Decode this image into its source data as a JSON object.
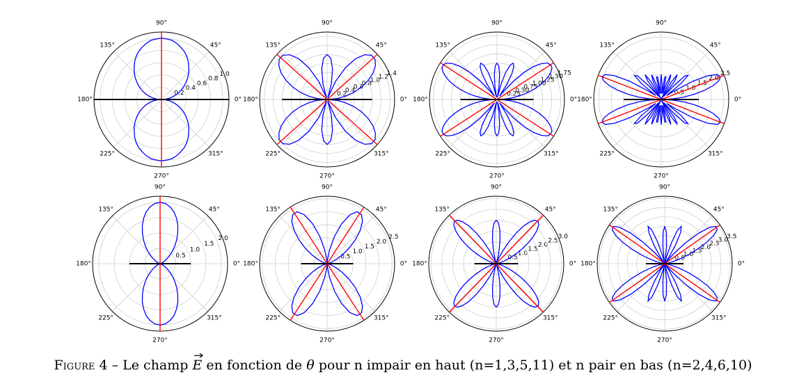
{
  "chart_data": [
    {
      "type": "polar",
      "x": [
        0,
        5,
        10,
        15,
        20,
        25,
        30,
        35,
        40,
        45,
        50,
        55,
        60,
        65,
        70,
        75,
        80,
        85,
        90
      ],
      "values": [
        0,
        0.07,
        0.14,
        0.21,
        0.28,
        0.35,
        0.42,
        0.49,
        0.56,
        0.63,
        0.69,
        0.76,
        0.82,
        0.87,
        0.91,
        0.95,
        0.98,
        0.99,
        1
      ],
      "color": "#0000ff",
      "ylim": [
        0,
        1.1
      ],
      "yticks": [
        0.2,
        0.4,
        0.6,
        0.8,
        {
          "value": 1,
          "label": "1.0"
        }
      ],
      "xticks": [
        {
          "value": 0,
          "label": "0°"
        },
        {
          "value": 45,
          "label": "45°"
        },
        {
          "value": 90,
          "label": "90°"
        },
        {
          "value": 135,
          "label": "135°"
        },
        {
          "value": 180,
          "label": "180°"
        },
        {
          "value": 225,
          "label": "225°"
        },
        {
          "value": 270,
          "label": "270°"
        },
        {
          "value": 315,
          "label": "315°"
        }
      ],
      "peak_angles": [
        90
      ],
      "peak_color": "#ff0000",
      "axis_line": 1.1,
      "axis_line_color": "#000000",
      "grid": true
    },
    {
      "type": "polar",
      "x": [
        0,
        5,
        10,
        15,
        20,
        25,
        30,
        35,
        40,
        45,
        50,
        55,
        60,
        65,
        70,
        75,
        80,
        85,
        90
      ],
      "values": [
        0,
        0.21,
        0.41,
        0.62,
        0.82,
        1.01,
        1.18,
        1.31,
        1.39,
        1.39,
        1.3,
        1.11,
        0.82,
        0.45,
        0.04,
        0.36,
        0.69,
        0.92,
        1
      ],
      "color": "#0000ff",
      "ylim": [
        0,
        1.5
      ],
      "yticks": [
        0.2,
        0.4,
        0.6,
        0.8,
        {
          "value": 1,
          "label": "1.0"
        },
        1.2,
        1.4
      ],
      "xticks": [
        {
          "value": 0,
          "label": "0°"
        },
        {
          "value": 45,
          "label": "45°"
        },
        {
          "value": 90,
          "label": "90°"
        },
        {
          "value": 135,
          "label": "135°"
        },
        {
          "value": 180,
          "label": "180°"
        },
        {
          "value": 225,
          "label": "225°"
        },
        {
          "value": 270,
          "label": "270°"
        },
        {
          "value": 315,
          "label": "315°"
        }
      ],
      "peak_angles": [
        42
      ],
      "peak_color": "#ff0000",
      "axis_line": 1,
      "axis_line_color": "#000000",
      "grid": true
    },
    {
      "type": "polar",
      "x": [
        0,
        3,
        6,
        9,
        12,
        15,
        18,
        21,
        24,
        27,
        30,
        33,
        36,
        39,
        42,
        45,
        48,
        51,
        54,
        57,
        60,
        63,
        66,
        69,
        72,
        75,
        78,
        81,
        84,
        87,
        90
      ],
      "values": [
        0,
        0.21,
        0.41,
        0.62,
        0.82,
        1.02,
        1.21,
        1.39,
        1.54,
        1.66,
        1.74,
        1.75,
        1.7,
        1.56,
        1.35,
        1.05,
        0.69,
        0.29,
        0.12,
        0.5,
        0.82,
        1.02,
        1.09,
        1.01,
        0.79,
        0.46,
        0.06,
        0.34,
        0.69,
        0.92,
        1
      ],
      "color": "#0000ff",
      "ylim": [
        0,
        1.85
      ],
      "yticks": [
        0.25,
        {
          "value": 0.5,
          "label": "0.50"
        },
        0.75,
        {
          "value": 1,
          "label": "1.00"
        },
        1.25,
        {
          "value": 1.5,
          "label": "1.50"
        },
        1.75
      ],
      "xticks": [
        {
          "value": 0,
          "label": "0°"
        },
        {
          "value": 45,
          "label": "45°"
        },
        {
          "value": 90,
          "label": "90°"
        },
        {
          "value": 135,
          "label": "135°"
        },
        {
          "value": 180,
          "label": "180°"
        },
        {
          "value": 225,
          "label": "225°"
        },
        {
          "value": 270,
          "label": "270°"
        },
        {
          "value": 315,
          "label": "315°"
        }
      ],
      "peak_angles": [
        33
      ],
      "peak_color": "#ff0000",
      "axis_line": 1,
      "axis_line_color": "#000000",
      "grid": true
    },
    {
      "type": "polar",
      "x": [
        0,
        3,
        6,
        9,
        12,
        15,
        18,
        21,
        24,
        27,
        30,
        33,
        36,
        39,
        42,
        45,
        48,
        51,
        54,
        57,
        60,
        63,
        66,
        69,
        72,
        75,
        78,
        81,
        84,
        87,
        90
      ],
      "values": [
        0,
        0.45,
        0.9,
        1.35,
        1.77,
        2.15,
        2.42,
        2.54,
        2.45,
        2.1,
        1.47,
        0.64,
        0.27,
        1.03,
        1.44,
        1.33,
        0.72,
        0.16,
        0.92,
        1.19,
        0.82,
        0.01,
        0.8,
        1.07,
        0.62,
        0.25,
        0.92,
        0.92,
        0.23,
        0.62,
        1
      ],
      "color": "#0000ff",
      "ylim": [
        0,
        2.7
      ],
      "yticks": [
        0.5,
        {
          "value": 1,
          "label": "1.0"
        },
        1.5,
        {
          "value": 2,
          "label": "2.0"
        },
        2.5
      ],
      "xticks": [
        {
          "value": 0,
          "label": "0°"
        },
        {
          "value": 45,
          "label": "45°"
        },
        {
          "value": 90,
          "label": "90°"
        },
        {
          "value": 135,
          "label": "135°"
        },
        {
          "value": 180,
          "label": "180°"
        },
        {
          "value": 225,
          "label": "225°"
        },
        {
          "value": 270,
          "label": "270°"
        },
        {
          "value": 315,
          "label": "315°"
        }
      ],
      "peak_angles": [
        21
      ],
      "peak_color": "#ff0000",
      "axis_line": 1.5,
      "axis_line_color": "#000000",
      "grid": true
    },
    {
      "type": "polar",
      "x": [
        0,
        5,
        10,
        15,
        20,
        25,
        30,
        35,
        40,
        45,
        50,
        55,
        60,
        65,
        70,
        75,
        80,
        85,
        90
      ],
      "values": [
        0,
        0,
        0.01,
        0.02,
        0.05,
        0.1,
        0.17,
        0.27,
        0.4,
        0.56,
        0.74,
        0.94,
        1.15,
        1.37,
        1.57,
        1.75,
        1.88,
        1.97,
        2
      ],
      "color": "#0000ff",
      "ylim": [
        0,
        2.2
      ],
      "yticks": [
        0.5,
        {
          "value": 1,
          "label": "1.0"
        },
        1.5,
        {
          "value": 2,
          "label": "2.0"
        }
      ],
      "xticks": [
        {
          "value": 0,
          "label": "0°"
        },
        {
          "value": 45,
          "label": "45°"
        },
        {
          "value": 90,
          "label": "90°"
        },
        {
          "value": 135,
          "label": "135°"
        },
        {
          "value": 180,
          "label": "180°"
        },
        {
          "value": 225,
          "label": "225°"
        },
        {
          "value": 270,
          "label": "270°"
        },
        {
          "value": 315,
          "label": "315°"
        }
      ],
      "peak_angles": [
        90
      ],
      "peak_color": "#ff0000",
      "axis_line": 1,
      "axis_line_color": "#000000",
      "grid": true
    },
    {
      "type": "polar",
      "x": [
        0,
        5,
        10,
        15,
        20,
        25,
        30,
        35,
        40,
        45,
        50,
        55,
        60,
        65,
        70,
        75,
        80,
        85,
        90
      ],
      "values": [
        0,
        0,
        0.03,
        0.09,
        0.21,
        0.4,
        0.67,
        1.01,
        1.4,
        1.79,
        2.12,
        2.31,
        2.31,
        2.08,
        1.64,
        1.09,
        0.54,
        0.15,
        0
      ],
      "color": "#0000ff",
      "ylim": [
        0,
        2.6
      ],
      "yticks": [
        0.5,
        {
          "value": 1,
          "label": "1.0"
        },
        1.5,
        {
          "value": 2,
          "label": "2.0"
        },
        2.5
      ],
      "xticks": [
        {
          "value": 0,
          "label": "0°"
        },
        {
          "value": 45,
          "label": "45°"
        },
        {
          "value": 90,
          "label": "90°"
        },
        {
          "value": 135,
          "label": "135°"
        },
        {
          "value": 180,
          "label": "180°"
        },
        {
          "value": 225,
          "label": "225°"
        },
        {
          "value": 270,
          "label": "270°"
        },
        {
          "value": 315,
          "label": "315°"
        }
      ],
      "peak_angles": [
        57
      ],
      "peak_color": "#ff0000",
      "axis_line": 1,
      "axis_line_color": "#000000",
      "grid": true
    },
    {
      "type": "polar",
      "x": [
        0,
        3,
        6,
        9,
        12,
        15,
        18,
        21,
        24,
        27,
        30,
        33,
        36,
        39,
        42,
        45,
        48,
        51,
        54,
        57,
        60,
        63,
        66,
        69,
        72,
        75,
        78,
        81,
        84,
        87,
        90
      ],
      "values": [
        0,
        0,
        0.01,
        0.04,
        0.1,
        0.2,
        0.34,
        0.53,
        0.77,
        1.06,
        1.39,
        1.74,
        2.09,
        2.39,
        2.62,
        2.73,
        2.69,
        2.49,
        2.15,
        1.68,
        1.15,
        0.65,
        0.25,
        0.03,
        0.03,
        0.24,
        0.63,
        1.11,
        1.56,
        1.88,
        2
      ],
      "color": "#0000ff",
      "ylim": [
        0,
        3.1
      ],
      "yticks": [
        0.5,
        {
          "value": 1,
          "label": "1.0"
        },
        1.5,
        {
          "value": 2,
          "label": "2.0"
        },
        2.5,
        {
          "value": 3,
          "label": "3.0"
        }
      ],
      "xticks": [
        {
          "value": 0,
          "label": "0°"
        },
        {
          "value": 45,
          "label": "45°"
        },
        {
          "value": 90,
          "label": "90°"
        },
        {
          "value": 135,
          "label": "135°"
        },
        {
          "value": 180,
          "label": "180°"
        },
        {
          "value": 225,
          "label": "225°"
        },
        {
          "value": 270,
          "label": "270°"
        },
        {
          "value": 315,
          "label": "315°"
        }
      ],
      "peak_angles": [
        46
      ],
      "peak_color": "#ff0000",
      "axis_line": 1,
      "axis_line_color": "#000000",
      "grid": true
    },
    {
      "type": "polar",
      "x": [
        0,
        3,
        6,
        9,
        12,
        15,
        18,
        21,
        24,
        27,
        30,
        33,
        36,
        39,
        42,
        45,
        48,
        51,
        54,
        57,
        60,
        63,
        66,
        69,
        72,
        75,
        78,
        81,
        84,
        87,
        90
      ],
      "values": [
        0,
        0,
        0.04,
        0.12,
        0.28,
        0.54,
        0.91,
        1.39,
        1.94,
        2.51,
        3.02,
        3.34,
        3.39,
        3.08,
        2.43,
        1.57,
        0.72,
        0.13,
        0.02,
        0.42,
        1.15,
        1.86,
        2.18,
        1.92,
        1.2,
        0.41,
        0.01,
        0.23,
        0.93,
        1.68,
        2
      ],
      "color": "#0000ff",
      "ylim": [
        0,
        3.6
      ],
      "yticks": [
        0.5,
        {
          "value": 1,
          "label": "1.0"
        },
        1.5,
        {
          "value": 2,
          "label": "2.0"
        },
        2.5,
        {
          "value": 3,
          "label": "3.0"
        },
        3.5
      ],
      "xticks": [
        {
          "value": 0,
          "label": "0°"
        },
        {
          "value": 45,
          "label": "45°"
        },
        {
          "value": 90,
          "label": "90°"
        },
        {
          "value": 135,
          "label": "135°"
        },
        {
          "value": 180,
          "label": "180°"
        },
        {
          "value": 225,
          "label": "225°"
        },
        {
          "value": 270,
          "label": "270°"
        },
        {
          "value": 315,
          "label": "315°"
        }
      ],
      "peak_angles": [
        35
      ],
      "peak_color": "#ff0000",
      "axis_line": 1,
      "axis_line_color": "#000000",
      "grid": true
    }
  ],
  "caption": {
    "label": "Figure 4",
    "dash": "–",
    "text_1": "Le champ",
    "symbol": "E",
    "text_2": "en fonction de",
    "theta": "θ",
    "text_3": "pour n impair en haut (n=1,3,5,11) et n pair en bas (n=2,4,6,10)"
  }
}
